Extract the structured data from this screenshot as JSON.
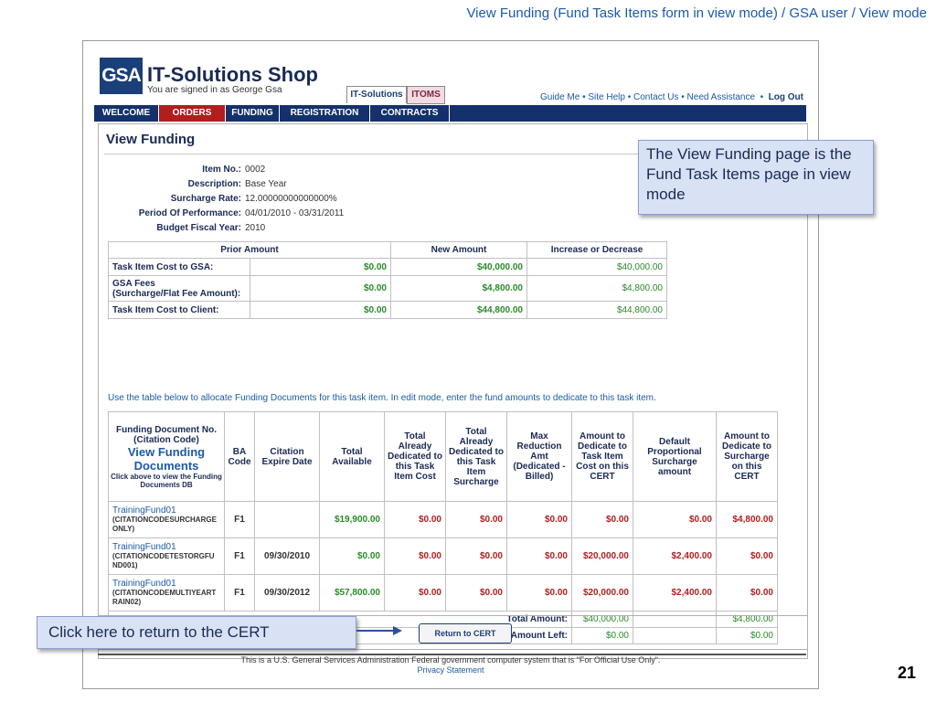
{
  "slide": {
    "title": "View Funding (Fund Task Items form in view mode) / GSA user / View mode",
    "page_number": "21"
  },
  "header": {
    "logo_text": "GSA",
    "app_title": "IT-Solutions Shop",
    "signed_in_prefix": "You are signed in as",
    "signed_in_user": "George Gsa",
    "tabs": [
      "IT-Solutions",
      "ITOMS"
    ],
    "utility_links": [
      "Guide Me",
      "Site Help",
      "Contact Us",
      "Need Assistance",
      "Log Out"
    ]
  },
  "nav": [
    "WELCOME",
    "ORDERS",
    "FUNDING",
    "REGISTRATION",
    "CONTRACTS"
  ],
  "page_title": "View Funding",
  "item": {
    "labels": [
      "Item No.:",
      "Description:",
      "Surcharge Rate:",
      "Period Of Performance:",
      "Budget Fiscal Year:"
    ],
    "values": [
      "0002",
      "Base Year",
      "12.00000000000000%",
      "04/01/2010 - 03/31/2011",
      "2010"
    ]
  },
  "summary": {
    "headers": [
      "Prior Amount",
      "New Amount",
      "Increase or Decrease"
    ],
    "rows": [
      {
        "label": "Task Item Cost to GSA:",
        "prior": "$0.00",
        "new": "$40,000.00",
        "diff": "$40,000.00"
      },
      {
        "label": "GSA Fees",
        "label2": "(Surcharge/Flat Fee Amount):",
        "prior": "$0.00",
        "new": "$4,800.00",
        "diff": "$4,800.00"
      },
      {
        "label": "Task Item Cost to Client:",
        "prior": "$0.00",
        "new": "$44,800.00",
        "diff": "$44,800.00"
      }
    ]
  },
  "instructions": "Use the table below to allocate Funding Documents for this task item. In edit mode, enter the fund amounts to dedicate to this task item.",
  "allocation": {
    "headers": {
      "funding_doc": "Funding Document No. (Citation Code)",
      "view_link": "View Funding Documents",
      "view_hint": "Click above to view the Funding Documents DB",
      "ba_code": "BA Code",
      "citation_expire": "Citation Expire Date",
      "total_available": "Total Available",
      "dedicated_cost": "Total Already Dedicated to this Task Item Cost",
      "dedicated_surcharge": "Total Already Dedicated to this Task Item Surcharge",
      "max_reduction": "Max Reduction Amt (Dedicated - Billed)",
      "dedicate_cost": "Amount to Dedicate to Task Item Cost on this CERT",
      "default_surcharge": "Default Proportional Surcharge amount",
      "dedicate_surcharge": "Amount to Dedicate to Surcharge on this CERT"
    },
    "rows": [
      {
        "fund": "TrainingFund01",
        "code": "(CITATIONCODESURCHARGE ONLY)",
        "ba": "F1",
        "expire": "",
        "available": "$19,900.00",
        "ded_cost": "$0.00",
        "ded_sur": "$0.00",
        "max_red": "$0.00",
        "amt_cost": "$0.00",
        "def_sur": "$0.00",
        "amt_sur": "$4,800.00"
      },
      {
        "fund": "TrainingFund01",
        "code": "(CITATIONCODETESTORGFU ND001)",
        "ba": "F1",
        "expire": "09/30/2010",
        "available": "$0.00",
        "ded_cost": "$0.00",
        "ded_sur": "$0.00",
        "max_red": "$0.00",
        "amt_cost": "$20,000.00",
        "def_sur": "$2,400.00",
        "amt_sur": "$0.00"
      },
      {
        "fund": "TrainingFund01",
        "code": "(CITATIONCODEMULTIYEART RAIN02)",
        "ba": "F1",
        "expire": "09/30/2012",
        "available": "$57,800.00",
        "ded_cost": "$0.00",
        "ded_sur": "$0.00",
        "max_red": "$0.00",
        "amt_cost": "$20,000.00",
        "def_sur": "$2,400.00",
        "amt_sur": "$0.00"
      }
    ],
    "total_label": "Total Amount:",
    "total_cost": "$40,000.00",
    "total_surcharge": "$4,800.00",
    "left_label": "Amount Left:",
    "left_cost": "$0.00",
    "left_surcharge": "$0.00"
  },
  "return_button": "Return to CERT",
  "footer": {
    "notice": "This is a U.S. General Services Administration Federal government computer system that is \"For Official Use Only\".",
    "privacy": "Privacy Statement"
  },
  "callouts": {
    "view_mode": "The View Funding page is the Fund Task Items page in view mode",
    "return": "Click here to return to the CERT"
  }
}
